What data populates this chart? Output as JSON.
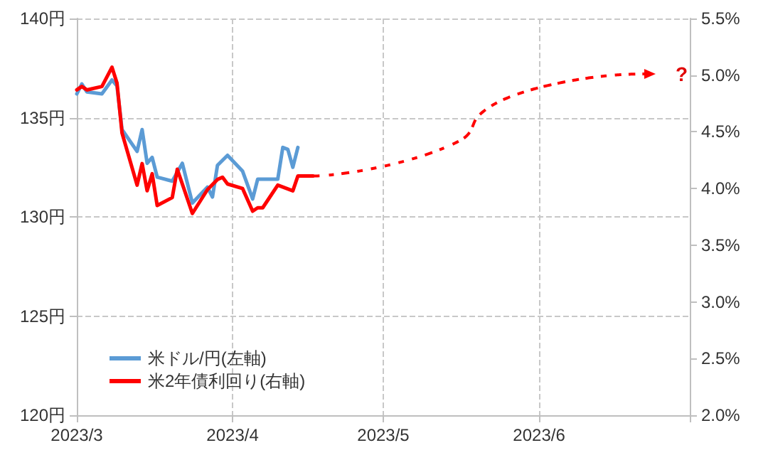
{
  "chart_data": {
    "type": "line",
    "xlim": [
      "2023-03-01",
      "2023-07-01"
    ],
    "xticks": [
      {
        "value": "2023-03-01",
        "label": "2023/3"
      },
      {
        "value": "2023-04-01",
        "label": "2023/4"
      },
      {
        "value": "2023-05-01",
        "label": "2023/5"
      },
      {
        "value": "2023-06-01",
        "label": "2023/6"
      },
      {
        "value": "2023-07-01",
        "label": null
      }
    ],
    "ylim": [
      120,
      140
    ],
    "yticks": [
      {
        "value": 120,
        "label": "120円"
      },
      {
        "value": 125,
        "label": "125円"
      },
      {
        "value": 130,
        "label": "130円"
      },
      {
        "value": 135,
        "label": "135円"
      },
      {
        "value": 140,
        "label": "140円"
      }
    ],
    "y2lim": [
      2.0,
      5.5
    ],
    "y2ticks": [
      {
        "value": 2.0,
        "label": "2.0%"
      },
      {
        "value": 2.5,
        "label": "2.5%"
      },
      {
        "value": 3.0,
        "label": "3.0%"
      },
      {
        "value": 3.5,
        "label": "3.5%"
      },
      {
        "value": 4.0,
        "label": "4.0%"
      },
      {
        "value": 4.5,
        "label": "4.5%"
      },
      {
        "value": 5.0,
        "label": "5.0%"
      },
      {
        "value": 5.5,
        "label": "5.5%"
      }
    ],
    "grid": true,
    "legend": "bottom left",
    "marker": "none",
    "line_style": "solid",
    "series": [
      {
        "name": "米ドル/円(左軸)",
        "color": "#5b9bd5",
        "x": [
          "2023-03-01",
          "2023-03-02",
          "2023-03-03",
          "2023-03-06",
          "2023-03-08",
          "2023-03-09",
          "2023-03-10",
          "2023-03-13",
          "2023-03-14",
          "2023-03-15",
          "2023-03-16",
          "2023-03-17",
          "2023-03-20",
          "2023-03-22",
          "2023-03-24",
          "2023-03-27",
          "2023-03-28",
          "2023-03-29",
          "2023-03-31",
          "2023-04-03",
          "2023-04-05",
          "2023-04-06",
          "2023-04-10",
          "2023-04-11",
          "2023-04-12",
          "2023-04-13",
          "2023-04-14"
        ],
        "values": [
          136.2,
          136.7,
          136.3,
          136.2,
          136.9,
          136.6,
          134.4,
          133.3,
          134.4,
          132.7,
          133.0,
          132.0,
          131.8,
          132.7,
          130.7,
          131.5,
          131.0,
          132.6,
          133.1,
          132.3,
          130.9,
          131.9,
          131.9,
          133.5,
          133.4,
          132.5,
          133.5
        ]
      },
      {
        "name": "米2年債利回り(右軸)",
        "color": "#ff0000",
        "axis": "y2",
        "x": [
          "2023-03-01",
          "2023-03-02",
          "2023-03-03",
          "2023-03-06",
          "2023-03-08",
          "2023-03-09",
          "2023-03-10",
          "2023-03-13",
          "2023-03-14",
          "2023-03-15",
          "2023-03-16",
          "2023-03-17",
          "2023-03-20",
          "2023-03-21",
          "2023-03-24",
          "2023-03-27",
          "2023-03-29",
          "2023-03-30",
          "2023-03-31",
          "2023-04-03",
          "2023-04-05",
          "2023-04-06",
          "2023-04-07",
          "2023-04-10",
          "2023-04-13",
          "2023-04-14",
          "2023-04-17"
        ],
        "values": [
          4.87,
          4.9,
          4.87,
          4.9,
          5.07,
          4.93,
          4.49,
          4.03,
          4.22,
          3.98,
          4.13,
          3.85,
          3.92,
          4.17,
          3.78,
          3.99,
          4.08,
          4.1,
          4.04,
          4.0,
          3.8,
          3.83,
          3.83,
          4.03,
          3.98,
          4.11,
          4.11
        ]
      }
    ],
    "annotations": [
      "?"
    ]
  }
}
